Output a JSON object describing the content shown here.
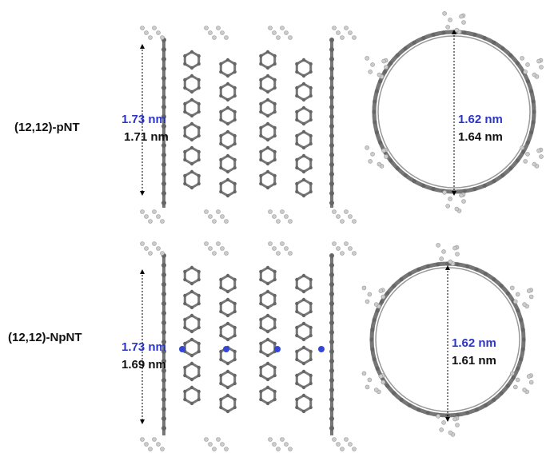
{
  "rows": [
    {
      "label": "(12,12)-pNT",
      "side": {
        "blue": "1.73 nm",
        "black": "1.71 nm"
      },
      "top": {
        "blue": "1.62 nm",
        "black": "1.64 nm"
      }
    },
    {
      "label": "(12,12)-NpNT",
      "side": {
        "blue": "1.73 nm",
        "black": "1.69 nm"
      },
      "top": {
        "blue": "1.62 nm",
        "black": "1.61 nm"
      }
    }
  ]
}
